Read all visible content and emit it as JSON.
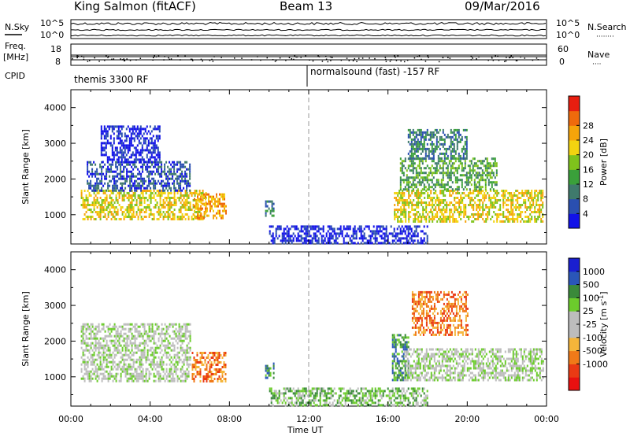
{
  "header": {
    "station": "King Salmon (fitACF)",
    "beam": "Beam 13",
    "date": "09/Mar/2016"
  },
  "top_panel": {
    "left_labels": [
      "N.Sky",
      "Freq.",
      "[MHz]",
      "CPID"
    ],
    "right_labels": [
      "N.Search",
      "Nave"
    ],
    "noise_ticks_left": [
      "10^5",
      "10^0"
    ],
    "noise_ticks_right": [
      "10^5",
      "10^0"
    ],
    "freq_ticks_left": [
      "18",
      "8"
    ],
    "nave_ticks_right": [
      "60",
      "0"
    ],
    "cpid_segments": [
      {
        "start": "00:00",
        "end": "12:00",
        "label": "themis 3300 RF"
      },
      {
        "start": "12:00",
        "end": "24:00",
        "label": "normalsound (fast) -157 RF"
      }
    ]
  },
  "chart_data": [
    {
      "type": "heatmap",
      "title": "",
      "xlabel": "Time UT",
      "ylabel": "Slant Range [km]",
      "xlim": [
        0,
        24
      ],
      "ylim": [
        180,
        4500
      ],
      "xticks": [
        "00:00",
        "04:00",
        "08:00",
        "12:00",
        "16:00",
        "20:00",
        "00:00"
      ],
      "yticks": [
        1000,
        2000,
        3000,
        4000
      ],
      "colorbar": {
        "label": "Power [dB]",
        "ticks": [
          "4",
          "8",
          "12",
          "16",
          "20",
          "24",
          "28"
        ],
        "colors": [
          "#1111e8",
          "#2a4fb0",
          "#3f7a6c",
          "#3aa03a",
          "#7fc31c",
          "#f2d310",
          "#f5a40a",
          "#ef6a0c",
          "#e81e10"
        ]
      },
      "echo_regions": [
        {
          "t_start": 0.5,
          "t_end": 6.8,
          "r_low": 900,
          "r_high": 1700,
          "level": 5
        },
        {
          "t_start": 0.8,
          "t_end": 6.0,
          "r_low": 1700,
          "r_high": 2500,
          "level": 1
        },
        {
          "t_start": 1.5,
          "t_end": 4.5,
          "r_low": 2500,
          "r_high": 3500,
          "level": 0
        },
        {
          "t_start": 6.2,
          "t_end": 7.8,
          "r_low": 900,
          "r_high": 1600,
          "level": 6
        },
        {
          "t_start": 9.8,
          "t_end": 10.2,
          "r_low": 1000,
          "r_high": 1400,
          "level": 2
        },
        {
          "t_start": 10.0,
          "t_end": 18.0,
          "r_low": 180,
          "r_high": 700,
          "level": 0
        },
        {
          "t_start": 16.3,
          "t_end": 23.8,
          "r_low": 800,
          "r_high": 1700,
          "level": 5
        },
        {
          "t_start": 16.6,
          "t_end": 21.5,
          "r_low": 1700,
          "r_high": 2600,
          "level": 3
        },
        {
          "t_start": 17.0,
          "t_end": 20.0,
          "r_low": 2600,
          "r_high": 3400,
          "level": 2
        }
      ]
    },
    {
      "type": "heatmap",
      "title": "",
      "xlabel": "Time UT",
      "ylabel": "Slant Range [km]",
      "xlim": [
        0,
        24
      ],
      "ylim": [
        180,
        4500
      ],
      "xticks": [
        "00:00",
        "04:00",
        "08:00",
        "12:00",
        "16:00",
        "20:00",
        "00:00"
      ],
      "yticks": [
        1000,
        2000,
        3000,
        4000
      ],
      "colorbar": {
        "label": "Velocity [m s",
        "label_superscript": "-1",
        "label_close": "]",
        "ticks": [
          "1000",
          "500",
          "100",
          "25",
          "-25",
          "-100",
          "-500",
          "-1000"
        ],
        "colors": [
          "#1a1fd0",
          "#2a56b8",
          "#3a8a3a",
          "#6ccc2c",
          "#bdbdbd",
          "#bdbdbd",
          "#f5b53a",
          "#f07a18",
          "#ea3a14",
          "#e81010"
        ]
      },
      "echo_regions": [
        {
          "t_start": 0.5,
          "t_end": 6.0,
          "r_low": 900,
          "r_high": 2500,
          "level": 4
        },
        {
          "t_start": 6.1,
          "t_end": 7.8,
          "r_low": 900,
          "r_high": 1700,
          "level": 7
        },
        {
          "t_start": 9.8,
          "t_end": 10.2,
          "r_low": 1000,
          "r_high": 1400,
          "level": 2
        },
        {
          "t_start": 10.0,
          "t_end": 18.0,
          "r_low": 180,
          "r_high": 700,
          "level": 3
        },
        {
          "t_start": 16.2,
          "t_end": 17.0,
          "r_low": 900,
          "r_high": 2200,
          "level": 2
        },
        {
          "t_start": 16.8,
          "t_end": 23.8,
          "r_low": 900,
          "r_high": 1800,
          "level": 4
        },
        {
          "t_start": 17.2,
          "t_end": 20.0,
          "r_low": 2200,
          "r_high": 3400,
          "level": 7
        }
      ]
    }
  ]
}
